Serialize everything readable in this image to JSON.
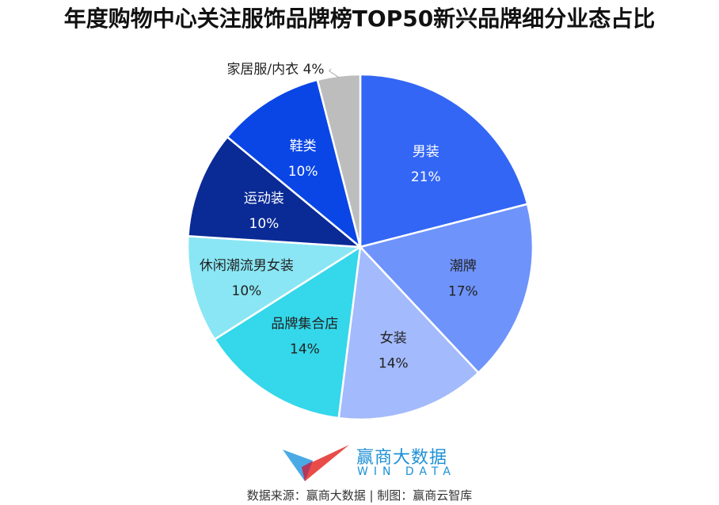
{
  "title": "年度购物中心关注服饰品牌榜TOP50新兴品牌细分业态占比",
  "chart_data": {
    "type": "pie",
    "title": "年度购物中心关注服饰品牌榜TOP50新兴品牌细分业态占比",
    "start_angle": "12 o'clock, clockwise",
    "categories": [
      "男装",
      "潮牌",
      "女装",
      "品牌集合店",
      "休闲潮流男女装",
      "运动装",
      "鞋类",
      "家居服/内衣"
    ],
    "values": [
      21,
      17,
      14,
      14,
      10,
      10,
      10,
      4
    ],
    "unit": "%",
    "colors": [
      "#3366f5",
      "#6e93fb",
      "#a3bafc",
      "#35d7ea",
      "#8ae6f4",
      "#0a2a96",
      "#0a46e6",
      "#bdbdbd"
    ],
    "label_colors": [
      "#ffffff",
      "#222222",
      "#222222",
      "#222222",
      "#222222",
      "#ffffff",
      "#ffffff",
      "#222222"
    ],
    "labels": [
      {
        "name": "男装",
        "pct": "21%"
      },
      {
        "name": "潮牌",
        "pct": "17%"
      },
      {
        "name": "女装",
        "pct": "14%"
      },
      {
        "name": "品牌集合店",
        "pct": "14%"
      },
      {
        "name": "休闲潮流男女装",
        "pct": "10%"
      },
      {
        "name": "运动装",
        "pct": "10%"
      },
      {
        "name": "鞋类",
        "pct": "10%"
      },
      {
        "name": "家居服/内衣",
        "pct": "4%",
        "outside": true,
        "text": "家居服/内衣 4%"
      }
    ]
  },
  "logo": {
    "name_cn": "赢商大数据",
    "name_en": "WIN DATA",
    "primary_color": "#1e90d6",
    "accent_color": "#e53935"
  },
  "footer": {
    "source": "数据来源：赢商大数据 | 制图：赢商云智库"
  }
}
